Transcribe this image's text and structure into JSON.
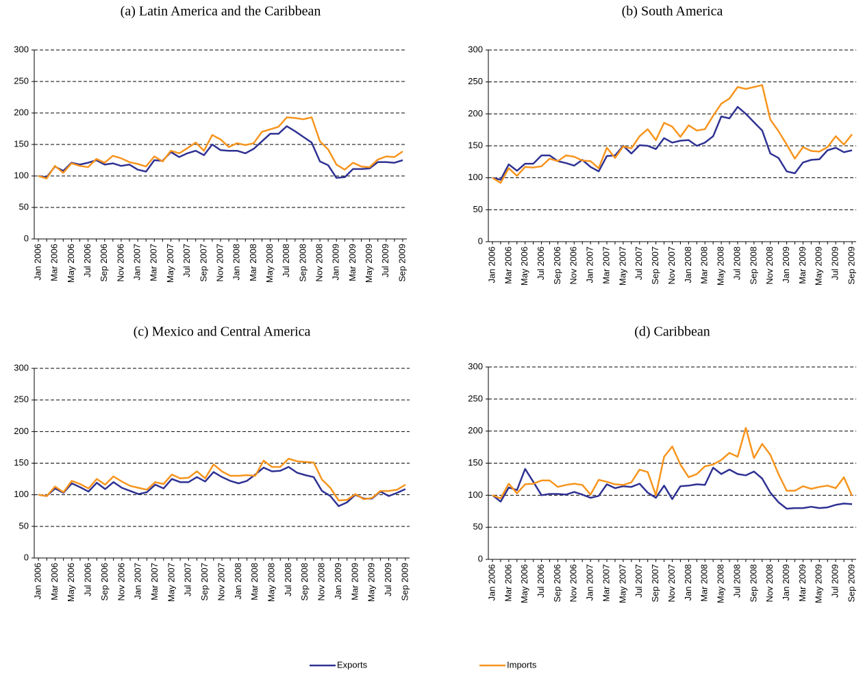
{
  "chart_data": [
    {
      "type": "line",
      "title": "(a) Latin America and the Caribbean",
      "categories": [
        "Jan 2006",
        null,
        "Mar 2006",
        null,
        "May 2006",
        null,
        "Jul 2006",
        null,
        "Sep 2006",
        null,
        "Nov 2006",
        null,
        "Jan 2007",
        null,
        "Mar 2007",
        null,
        "May 2007",
        null,
        "Jul 2007",
        null,
        "Sep 2007",
        null,
        "Nov 2007",
        null,
        "Jan 2008",
        null,
        "Mar 2008",
        null,
        "May 2008",
        null,
        "Jul 2008",
        null,
        "Sep 2008",
        null,
        "Nov 2008",
        null,
        "Jan 2009",
        null,
        "Mar 2009",
        null,
        "May 2009",
        null,
        "Jul 2009",
        null,
        "Sep 2009"
      ],
      "series": [
        {
          "color": "#2e3192",
          "values": [
            100,
            98,
            115,
            108,
            121,
            118,
            121,
            125,
            118,
            120,
            116,
            118,
            110,
            107,
            125,
            124,
            138,
            130,
            136,
            140,
            133,
            150,
            141,
            140,
            140,
            136,
            143,
            155,
            167,
            167,
            179,
            171,
            162,
            153,
            123,
            117,
            97,
            98,
            111,
            111,
            112,
            122,
            122,
            121,
            125
          ]
        },
        {
          "color": "#f7941d",
          "values": [
            100,
            96,
            116,
            105,
            120,
            116,
            114,
            127,
            121,
            132,
            128,
            122,
            119,
            115,
            131,
            123,
            140,
            136,
            144,
            153,
            140,
            165,
            158,
            146,
            152,
            149,
            152,
            170,
            174,
            178,
            193,
            192,
            190,
            193,
            155,
            142,
            118,
            110,
            121,
            115,
            114,
            126,
            131,
            130,
            139
          ]
        }
      ],
      "ylim": [
        0,
        300
      ],
      "yticks": [
        0,
        50,
        100,
        150,
        200,
        250,
        300
      ],
      "grid": true
    },
    {
      "type": "line",
      "title": "(b) South America",
      "categories": [
        "Jan 2006",
        null,
        "Mar 2006",
        null,
        "May 2006",
        null,
        "Jul 2006",
        null,
        "Sep 2006",
        null,
        "Nov 2006",
        null,
        "Jan 2007",
        null,
        "Mar 2007",
        null,
        "May 2007",
        null,
        "Jul 2007",
        null,
        "Sep 2007",
        null,
        "Nov 2007",
        null,
        "Jan 2008",
        null,
        "Mar 2008",
        null,
        "May 2008",
        null,
        "Jul 2008",
        null,
        "Sep 2008",
        null,
        "Nov 2008",
        null,
        "Jan 2009",
        null,
        "Mar 2009",
        null,
        "May 2009",
        null,
        "Jul 2009",
        null,
        "Sep 2009"
      ],
      "series": [
        {
          "color": "#2e3192",
          "values": [
            100,
            97,
            121,
            111,
            122,
            122,
            135,
            135,
            126,
            123,
            119,
            128,
            117,
            110,
            134,
            135,
            150,
            138,
            151,
            150,
            145,
            162,
            155,
            158,
            159,
            150,
            155,
            165,
            196,
            193,
            211,
            200,
            187,
            174,
            138,
            131,
            110,
            107,
            124,
            128,
            129,
            143,
            147,
            140,
            143
          ]
        },
        {
          "color": "#f7941d",
          "values": [
            100,
            92,
            115,
            103,
            117,
            116,
            118,
            130,
            126,
            135,
            133,
            127,
            126,
            115,
            147,
            131,
            149,
            146,
            165,
            176,
            159,
            186,
            180,
            164,
            182,
            174,
            176,
            197,
            216,
            224,
            242,
            239,
            242,
            245,
            191,
            173,
            152,
            130,
            148,
            142,
            141,
            148,
            165,
            152,
            168
          ]
        }
      ],
      "ylim": [
        0,
        300
      ],
      "yticks": [
        0,
        50,
        100,
        150,
        200,
        250,
        300
      ],
      "grid": true
    },
    {
      "type": "line",
      "title": "(c) Mexico and Central America",
      "categories": [
        "Jan 2006",
        null,
        "Mar 2006",
        null,
        "May 2006",
        null,
        "Jul 2006",
        null,
        "Sep 2006",
        null,
        "Nov 2006",
        null,
        "Jan 2007",
        null,
        "Mar 2007",
        null,
        "May 2007",
        null,
        "Jul 2007",
        null,
        "Sep 2007",
        null,
        "Nov 2007",
        null,
        "Jan 2008",
        null,
        "Mar 2008",
        null,
        "May 2008",
        null,
        "Jul 2008",
        null,
        "Sep 2008",
        null,
        "Nov 2008",
        null,
        "Jan 2009",
        null,
        "Mar 2009",
        null,
        "May 2009",
        null,
        "Jul 2009",
        null,
        "Sep 2009"
      ],
      "series": [
        {
          "color": "#2e3192",
          "values": [
            100,
            98,
            110,
            103,
            118,
            112,
            105,
            119,
            109,
            120,
            111,
            106,
            101,
            104,
            116,
            110,
            125,
            120,
            120,
            128,
            121,
            136,
            128,
            122,
            118,
            122,
            132,
            143,
            137,
            138,
            144,
            135,
            131,
            128,
            106,
            98,
            82,
            88,
            100,
            94,
            94,
            105,
            98,
            103,
            109
          ]
        },
        {
          "color": "#f7941d",
          "values": [
            100,
            98,
            113,
            104,
            122,
            117,
            110,
            125,
            116,
            129,
            121,
            114,
            111,
            108,
            120,
            117,
            132,
            126,
            127,
            137,
            126,
            148,
            137,
            130,
            130,
            131,
            130,
            154,
            144,
            144,
            157,
            153,
            152,
            151,
            124,
            111,
            91,
            92,
            101,
            93,
            95,
            106,
            106,
            108,
            116
          ]
        }
      ],
      "ylim": [
        0,
        300
      ],
      "yticks": [
        0,
        50,
        100,
        150,
        200,
        250,
        300
      ],
      "grid": true
    },
    {
      "type": "line",
      "title": "(d) Caribbean",
      "categories": [
        "Jan 2006",
        null,
        "Mar 2006",
        null,
        "May 2006",
        null,
        "Jul 2006",
        null,
        "Sep 2006",
        null,
        "Nov 2006",
        null,
        "Jan 2007",
        null,
        "Mar 2007",
        null,
        "May 2007",
        null,
        "Jul 2007",
        null,
        "Sep 2007",
        null,
        "Nov 2007",
        null,
        "Jan 2008",
        null,
        "Mar 2008",
        null,
        "May 2008",
        null,
        "Jul 2008",
        null,
        "Sep 2008",
        null,
        "Nov 2008",
        null,
        "Jan 2009",
        null,
        "Mar 2009",
        null,
        "May 2009",
        null,
        "Jul 2009",
        null,
        "Sep 2009"
      ],
      "series": [
        {
          "color": "#2e3192",
          "values": [
            100,
            90,
            112,
            108,
            141,
            121,
            100,
            102,
            102,
            101,
            105,
            101,
            96,
            99,
            117,
            111,
            114,
            113,
            118,
            104,
            96,
            115,
            94,
            114,
            115,
            117,
            116,
            143,
            133,
            140,
            133,
            131,
            137,
            126,
            104,
            89,
            79,
            80,
            80,
            82,
            80,
            81,
            85,
            87,
            86
          ]
        },
        {
          "color": "#f7941d",
          "values": [
            100,
            95,
            118,
            103,
            117,
            118,
            123,
            123,
            113,
            116,
            118,
            116,
            101,
            124,
            121,
            117,
            116,
            120,
            140,
            136,
            100,
            160,
            176,
            148,
            128,
            133,
            145,
            148,
            155,
            166,
            160,
            205,
            158,
            180,
            163,
            133,
            107,
            107,
            114,
            110,
            113,
            115,
            111,
            128,
            99
          ]
        }
      ],
      "ylim": [
        0,
        300
      ],
      "yticks": [
        0,
        50,
        100,
        150,
        200,
        250,
        300
      ],
      "grid": true
    }
  ],
  "legend": {
    "items": [
      {
        "name": "Exports",
        "color": "#2e3192"
      },
      {
        "name": "Imports",
        "color": "#f7941d"
      }
    ]
  }
}
